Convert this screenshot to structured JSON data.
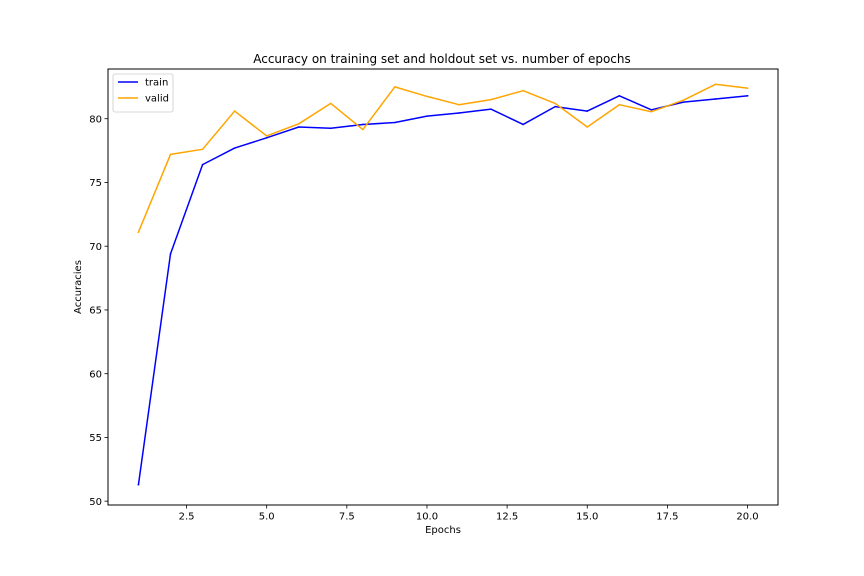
{
  "chart_data": {
    "type": "line",
    "title": "Accuracy on training set and holdout set vs. number of epochs",
    "xlabel": "Epochs",
    "ylabel": "Accuracies",
    "xlim": [
      0.05,
      20.95
    ],
    "ylim": [
      49.7,
      83.9
    ],
    "x": [
      1,
      2,
      3,
      4,
      5,
      6,
      7,
      8,
      9,
      10,
      11,
      12,
      13,
      14,
      15,
      16,
      17,
      18,
      19,
      20
    ],
    "x_ticks": [
      2.5,
      5.0,
      7.5,
      10.0,
      12.5,
      15.0,
      17.5,
      20.0
    ],
    "x_tick_labels": [
      "2.5",
      "5.0",
      "7.5",
      "10.0",
      "12.5",
      "15.0",
      "17.5",
      "20.0"
    ],
    "y_ticks": [
      50,
      55,
      60,
      65,
      70,
      75,
      80
    ],
    "y_tick_labels": [
      "50",
      "55",
      "60",
      "65",
      "70",
      "75",
      "80"
    ],
    "grid": false,
    "legend_position": "top-left",
    "series": [
      {
        "name": "train",
        "color": "#0000ff",
        "values": [
          51.3,
          69.4,
          76.4,
          77.7,
          78.5,
          79.35,
          79.25,
          79.55,
          79.7,
          80.2,
          80.45,
          80.75,
          79.55,
          80.95,
          80.6,
          81.8,
          80.7,
          81.3,
          81.55,
          81.8
        ]
      },
      {
        "name": "valid",
        "color": "#ffa500",
        "values": [
          71.1,
          77.2,
          77.6,
          80.6,
          78.65,
          79.6,
          81.2,
          79.15,
          82.5,
          81.75,
          81.1,
          81.5,
          82.2,
          81.2,
          79.35,
          81.1,
          80.55,
          81.45,
          82.7,
          82.4
        ]
      }
    ]
  }
}
